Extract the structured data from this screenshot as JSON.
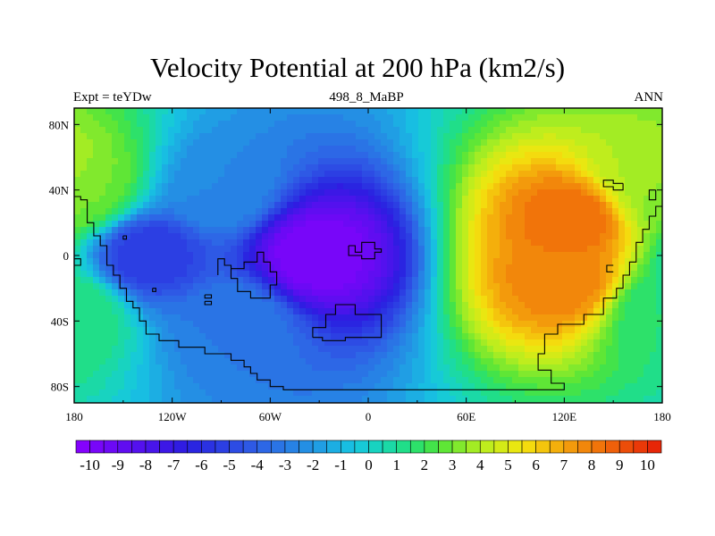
{
  "title": "Velocity Potential at 200 hPa (km2/s)",
  "subtitle_left": "Expt = teYDw",
  "subtitle_center": "498_8_MaBP",
  "subtitle_right": "ANN",
  "chart_data": {
    "type": "heatmap",
    "projection": "cylindrical-equidistant",
    "variable": "velocity potential",
    "level": "200 hPa",
    "units": "km2/s",
    "x_range": [
      -180,
      180
    ],
    "y_range": [
      -90,
      90
    ],
    "x_ticks": [
      {
        "value": -180,
        "label": "180"
      },
      {
        "value": -120,
        "label": "120W"
      },
      {
        "value": -60,
        "label": "60W"
      },
      {
        "value": 0,
        "label": "0"
      },
      {
        "value": 60,
        "label": "60E"
      },
      {
        "value": 120,
        "label": "120E"
      },
      {
        "value": 180,
        "label": "180"
      }
    ],
    "y_ticks": [
      {
        "value": 80,
        "label": "80N"
      },
      {
        "value": 40,
        "label": "40N"
      },
      {
        "value": 0,
        "label": "0"
      },
      {
        "value": -40,
        "label": "40S"
      },
      {
        "value": -80,
        "label": "80S"
      }
    ],
    "background_value": -1.5,
    "centers": [
      {
        "lon": -33,
        "lat": 0,
        "value": -10.0,
        "note": "global minimum"
      },
      {
        "lon": -135,
        "lat": 0,
        "value": -5.5
      },
      {
        "lon": -90,
        "lat": 40,
        "value": -2.5
      },
      {
        "lon": -80,
        "lat": -40,
        "value": -3.0
      },
      {
        "lon": 125,
        "lat": 22,
        "value": 8.5,
        "note": "global maximum"
      },
      {
        "lon": 120,
        "lat": -14,
        "value": 8.0
      },
      {
        "lon": 170,
        "lat": 50,
        "value": 4.0
      },
      {
        "lon": -175,
        "lat": 40,
        "value": 3.0
      },
      {
        "lon": -180,
        "lat": -35,
        "value": 1.5
      }
    ],
    "colorbar": {
      "min": -10.5,
      "max": 10.5,
      "step": 0.5,
      "labels": [
        "-10",
        "-9",
        "-8",
        "-7",
        "-6",
        "-5",
        "-4",
        "-3",
        "-2",
        "-1",
        "0",
        "1",
        "2",
        "3",
        "4",
        "5",
        "6",
        "7",
        "8",
        "9",
        "10"
      ],
      "color_stops": [
        {
          "value": -10.5,
          "color": "#8a00ff"
        },
        {
          "value": -6.5,
          "color": "#2a1ee0"
        },
        {
          "value": -4.0,
          "color": "#2e60e6"
        },
        {
          "value": -2.0,
          "color": "#2296e4"
        },
        {
          "value": -0.5,
          "color": "#16c6e2"
        },
        {
          "value": 0.5,
          "color": "#19d7b4"
        },
        {
          "value": 1.5,
          "color": "#22e07a"
        },
        {
          "value": 2.5,
          "color": "#4ee43a"
        },
        {
          "value": 4.0,
          "color": "#b4ee20"
        },
        {
          "value": 5.5,
          "color": "#f4e60e"
        },
        {
          "value": 7.0,
          "color": "#f4a40c"
        },
        {
          "value": 8.5,
          "color": "#f06a0a"
        },
        {
          "value": 10.5,
          "color": "#e61c06"
        }
      ]
    },
    "coastline_note": "continental outlines drawn in black"
  }
}
